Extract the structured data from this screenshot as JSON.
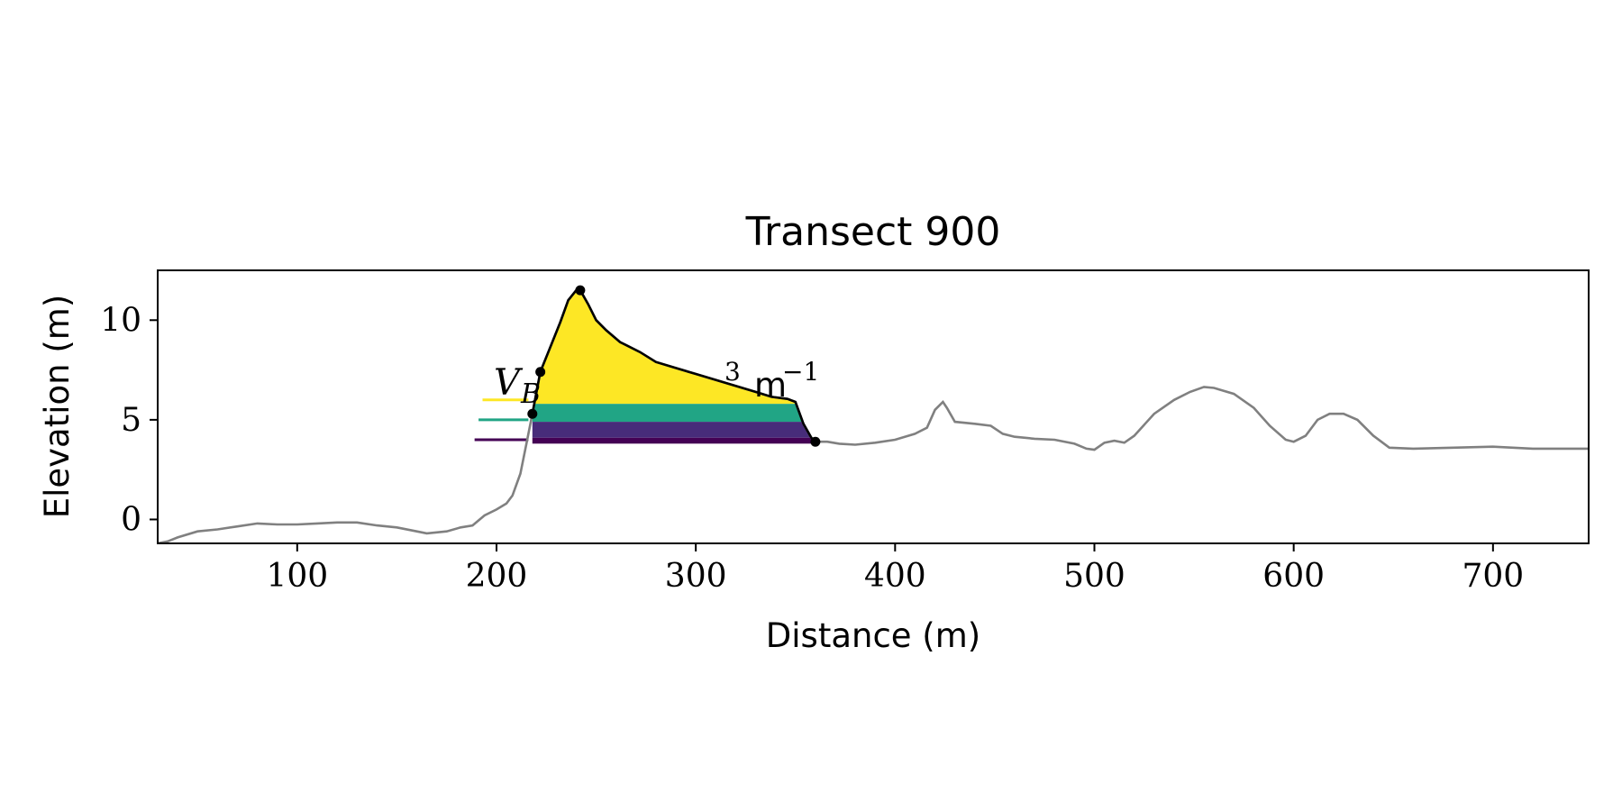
{
  "chart_data": {
    "type": "area",
    "title": "Transect 900",
    "xlabel": "Distance (m)",
    "ylabel": "Elevation (m)",
    "xlim": [
      30,
      748
    ],
    "ylim": [
      -1.2,
      12.5
    ],
    "x_ticks": [
      100,
      200,
      300,
      400,
      500,
      600,
      700
    ],
    "y_ticks": [
      0,
      5,
      10
    ],
    "grid": false,
    "legend": false,
    "colors": {
      "profile": "#808080",
      "dune_outline": "#000000",
      "band_top": "#fde725",
      "band_mid": "#21a585",
      "band_low": "#472c7a",
      "band_base": "#440154",
      "markers": "#000000"
    },
    "annotations": {
      "volume_label_var": "V",
      "volume_label_sub": "B",
      "volume_label_sup": "3",
      "volume_label_unit": "m",
      "volume_label_unit_exp": "−1"
    },
    "series": [
      {
        "role": "profile",
        "points": [
          [
            30,
            -1.2
          ],
          [
            35,
            -1.1
          ],
          [
            40,
            -0.9
          ],
          [
            50,
            -0.6
          ],
          [
            60,
            -0.5
          ],
          [
            70,
            -0.35
          ],
          [
            80,
            -0.2
          ],
          [
            90,
            -0.25
          ],
          [
            100,
            -0.25
          ],
          [
            110,
            -0.2
          ],
          [
            120,
            -0.15
          ],
          [
            130,
            -0.15
          ],
          [
            140,
            -0.3
          ],
          [
            150,
            -0.4
          ],
          [
            160,
            -0.6
          ],
          [
            165,
            -0.7
          ],
          [
            175,
            -0.6
          ],
          [
            182,
            -0.4
          ],
          [
            188,
            -0.3
          ],
          [
            194,
            0.2
          ],
          [
            200,
            0.5
          ],
          [
            205,
            0.8
          ],
          [
            208,
            1.2
          ],
          [
            212,
            2.3
          ],
          [
            215,
            3.8
          ],
          [
            218,
            5.3
          ],
          [
            222,
            7.4
          ],
          [
            226,
            8.4
          ],
          [
            232,
            9.9
          ],
          [
            236,
            11.0
          ],
          [
            240,
            11.5
          ],
          [
            242,
            11.5
          ],
          [
            246,
            10.8
          ],
          [
            250,
            10.0
          ],
          [
            255,
            9.5
          ],
          [
            262,
            8.9
          ],
          [
            272,
            8.4
          ],
          [
            280,
            7.9
          ],
          [
            290,
            7.6
          ],
          [
            300,
            7.3
          ],
          [
            310,
            7.0
          ],
          [
            320,
            6.7
          ],
          [
            330,
            6.4
          ],
          [
            338,
            6.15
          ],
          [
            346,
            6.05
          ],
          [
            350,
            5.9
          ],
          [
            354,
            4.8
          ],
          [
            358,
            4.1
          ],
          [
            360,
            3.9
          ],
          [
            366,
            3.9
          ],
          [
            372,
            3.8
          ],
          [
            380,
            3.75
          ],
          [
            390,
            3.85
          ],
          [
            400,
            4.0
          ],
          [
            410,
            4.3
          ],
          [
            416,
            4.6
          ],
          [
            420,
            5.5
          ],
          [
            424,
            5.9
          ],
          [
            426,
            5.6
          ],
          [
            430,
            4.9
          ],
          [
            440,
            4.8
          ],
          [
            448,
            4.7
          ],
          [
            454,
            4.3
          ],
          [
            460,
            4.15
          ],
          [
            470,
            4.05
          ],
          [
            480,
            4.0
          ],
          [
            490,
            3.8
          ],
          [
            496,
            3.55
          ],
          [
            500,
            3.5
          ],
          [
            505,
            3.85
          ],
          [
            510,
            3.95
          ],
          [
            515,
            3.85
          ],
          [
            520,
            4.2
          ],
          [
            530,
            5.3
          ],
          [
            540,
            6.0
          ],
          [
            548,
            6.4
          ],
          [
            555,
            6.65
          ],
          [
            560,
            6.6
          ],
          [
            570,
            6.3
          ],
          [
            580,
            5.6
          ],
          [
            588,
            4.7
          ],
          [
            596,
            4.0
          ],
          [
            600,
            3.9
          ],
          [
            606,
            4.2
          ],
          [
            612,
            5.0
          ],
          [
            618,
            5.3
          ],
          [
            625,
            5.3
          ],
          [
            632,
            5.0
          ],
          [
            640,
            4.2
          ],
          [
            648,
            3.6
          ],
          [
            660,
            3.55
          ],
          [
            680,
            3.6
          ],
          [
            700,
            3.65
          ],
          [
            720,
            3.55
          ],
          [
            748,
            3.55
          ]
        ]
      },
      {
        "role": "dune-outline",
        "points": [
          [
            218,
            5.3
          ],
          [
            222,
            7.4
          ],
          [
            226,
            8.4
          ],
          [
            232,
            9.9
          ],
          [
            236,
            11.0
          ],
          [
            240,
            11.5
          ],
          [
            242,
            11.5
          ],
          [
            246,
            10.8
          ],
          [
            250,
            10.0
          ],
          [
            255,
            9.5
          ],
          [
            262,
            8.9
          ],
          [
            272,
            8.4
          ],
          [
            280,
            7.9
          ],
          [
            290,
            7.6
          ],
          [
            300,
            7.3
          ],
          [
            310,
            7.0
          ],
          [
            320,
            6.7
          ],
          [
            330,
            6.4
          ],
          [
            338,
            6.15
          ],
          [
            346,
            6.05
          ],
          [
            350,
            5.9
          ],
          [
            354,
            4.8
          ],
          [
            358,
            4.1
          ],
          [
            360,
            3.9
          ]
        ]
      },
      {
        "role": "marker-points",
        "points": [
          [
            218,
            5.3
          ],
          [
            222,
            7.4
          ],
          [
            242,
            11.5
          ],
          [
            360,
            3.9
          ]
        ]
      },
      {
        "role": "volume-bands",
        "bands": [
          {
            "color": "band_top",
            "y0": 5.8,
            "y1": 12.0
          },
          {
            "color": "band_mid",
            "y0": 4.9,
            "y1": 5.8
          },
          {
            "color": "band_low",
            "y0": 4.1,
            "y1": 4.9
          },
          {
            "color": "band_base",
            "y0": 3.8,
            "y1": 4.1
          }
        ],
        "x_start": 216,
        "x_end": 358
      },
      {
        "role": "level-lines",
        "lines": [
          {
            "color": "band_top",
            "y": 6.0,
            "x0": 193,
            "x1": 216
          },
          {
            "color": "band_mid",
            "y": 5.0,
            "x0": 191,
            "x1": 216
          },
          {
            "color": "band_base",
            "y": 4.0,
            "x0": 189,
            "x1": 216
          }
        ]
      }
    ]
  }
}
